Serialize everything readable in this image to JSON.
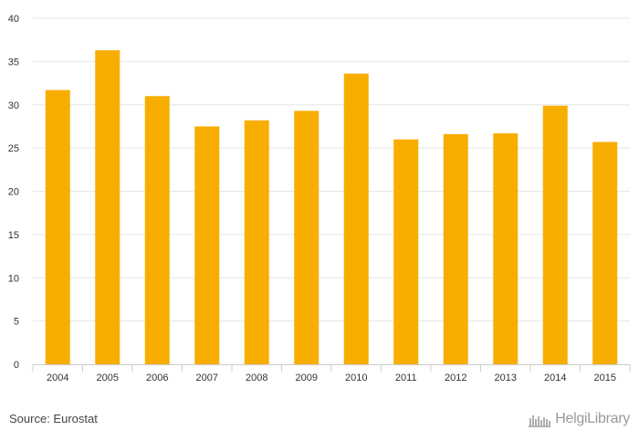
{
  "chart_data": {
    "type": "bar",
    "categories": [
      "2004",
      "2005",
      "2006",
      "2007",
      "2008",
      "2009",
      "2010",
      "2011",
      "2012",
      "2013",
      "2014",
      "2015"
    ],
    "values": [
      31.7,
      36.3,
      31.0,
      27.5,
      28.2,
      29.3,
      33.6,
      26.0,
      26.6,
      26.7,
      29.9,
      25.7
    ],
    "yticks": [
      "0",
      "5",
      "10",
      "15",
      "20",
      "25",
      "30",
      "35",
      "40"
    ],
    "ylim": [
      0,
      40
    ],
    "grid": true,
    "bar_color": "#f8ae00",
    "grid_color": "#e6e6e6",
    "title": "",
    "xlabel": "",
    "ylabel": ""
  },
  "footer": {
    "source": "Source: Eurostat",
    "logo_text": "HelgiLibrary"
  }
}
